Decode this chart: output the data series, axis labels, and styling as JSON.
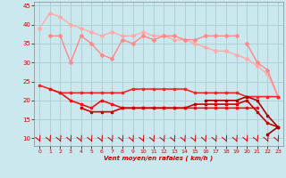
{
  "title": "",
  "xlabel": "Vent moyen/en rafales ( km/h )",
  "bg_color": "#cbe8ef",
  "grid_color": "#b0d0d8",
  "x": [
    0,
    1,
    2,
    3,
    4,
    5,
    6,
    7,
    8,
    9,
    10,
    11,
    12,
    13,
    14,
    15,
    16,
    17,
    18,
    19,
    20,
    21,
    22,
    23
  ],
  "series": [
    {
      "y": [
        39,
        43,
        42,
        40,
        39,
        38,
        37,
        38,
        37,
        37,
        38,
        37,
        37,
        36,
        36,
        35,
        34,
        33,
        33,
        32,
        31,
        29,
        27,
        21
      ],
      "color": "#ffaaaa",
      "lw": 1.0,
      "marker": "D",
      "ms": 2.0
    },
    {
      "y": [
        null,
        37,
        37,
        30,
        37,
        35,
        32,
        31,
        36,
        35,
        37,
        36,
        37,
        37,
        36,
        36,
        37,
        37,
        37,
        37,
        null,
        null,
        null,
        null
      ],
      "color": "#ff8888",
      "lw": 1.0,
      "marker": "D",
      "ms": 2.0
    },
    {
      "y": [
        null,
        null,
        null,
        null,
        null,
        null,
        null,
        null,
        null,
        null,
        null,
        null,
        null,
        null,
        null,
        null,
        null,
        null,
        null,
        null,
        35,
        30,
        28,
        21
      ],
      "color": "#ff8888",
      "lw": 1.0,
      "marker": "D",
      "ms": 2.0
    },
    {
      "y": [
        24,
        23,
        22,
        22,
        22,
        22,
        22,
        22,
        22,
        23,
        23,
        23,
        23,
        23,
        23,
        22,
        22,
        22,
        22,
        22,
        21,
        21,
        21,
        21
      ],
      "color": "#ff2222",
      "lw": 1.2,
      "marker": "s",
      "ms": 1.8
    },
    {
      "y": [
        null,
        23,
        22,
        20,
        19,
        18,
        20,
        19,
        18,
        18,
        18,
        18,
        18,
        18,
        18,
        18,
        18,
        18,
        18,
        18,
        18,
        18,
        null,
        null
      ],
      "color": "#ee1111",
      "lw": 1.2,
      "marker": "s",
      "ms": 1.8
    },
    {
      "y": [
        null,
        null,
        null,
        null,
        18,
        17,
        17,
        17,
        18,
        18,
        18,
        18,
        18,
        18,
        18,
        19,
        19,
        19,
        19,
        19,
        20,
        17,
        14,
        13
      ],
      "color": "#cc0000",
      "lw": 1.2,
      "marker": "s",
      "ms": 1.8
    },
    {
      "y": [
        null,
        null,
        null,
        null,
        null,
        null,
        null,
        null,
        null,
        null,
        null,
        null,
        null,
        null,
        null,
        null,
        20,
        20,
        20,
        20,
        21,
        20,
        16,
        13
      ],
      "color": "#aa0000",
      "lw": 1.2,
      "marker": "s",
      "ms": 1.8
    },
    {
      "y": [
        null,
        null,
        null,
        null,
        null,
        null,
        null,
        null,
        null,
        null,
        null,
        null,
        null,
        null,
        null,
        null,
        null,
        null,
        null,
        null,
        null,
        null,
        11,
        13
      ],
      "color": "#990000",
      "lw": 1.2,
      "marker": "s",
      "ms": 1.8
    }
  ],
  "ylim": [
    8,
    46
  ],
  "yticks": [
    10,
    15,
    20,
    25,
    30,
    35,
    40,
    45
  ],
  "xticks": [
    0,
    1,
    2,
    3,
    4,
    5,
    6,
    7,
    8,
    9,
    10,
    11,
    12,
    13,
    14,
    15,
    16,
    17,
    18,
    19,
    20,
    21,
    22,
    23
  ],
  "arrow_color": "#cc0000"
}
